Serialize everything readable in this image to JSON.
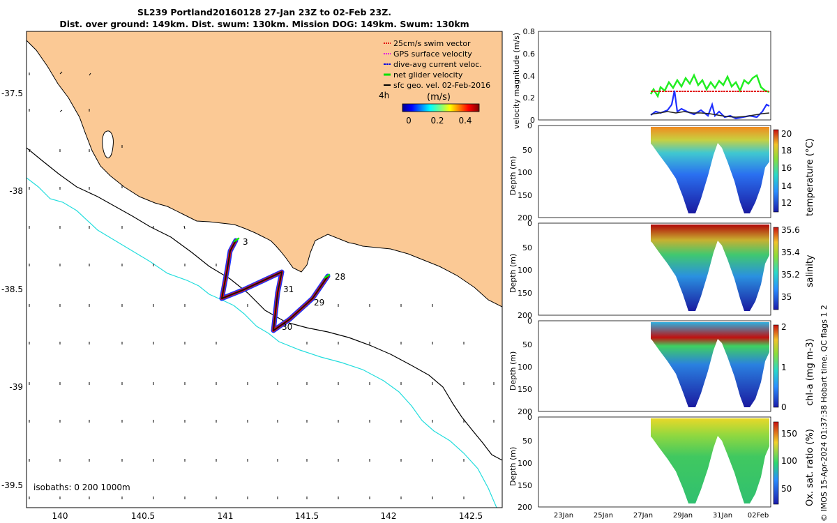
{
  "title": {
    "line1": "SL239 Portland20160128 27-Jan 23Z to 02-Feb 23Z.",
    "line2": "Dist. over ground: 149km. Dist. swum: 130km. Mission DOG: 149km. Swum: 130km"
  },
  "map": {
    "lon_ticks": [
      "140",
      "140.5",
      "141",
      "141.5",
      "142",
      "142.5"
    ],
    "lat_ticks": [
      "-37.5",
      "-38",
      "-38.5",
      "-39",
      "-39.5"
    ],
    "isobaths_label": "isobaths: 0   200  1000m",
    "legend": [
      {
        "label": "25cm/s swim vector",
        "color": "#e00000"
      },
      {
        "label": "GPS surface velocity",
        "color": "#e000e0"
      },
      {
        "label": "dive-avg current veloc.",
        "color": "#0000e0"
      },
      {
        "label": "net glider velocity",
        "color": "#00e000"
      },
      {
        "label": "sfc geo. vel. 02-Feb-2016",
        "color": "#000000"
      }
    ],
    "colorbar": {
      "prefix": "4h",
      "units": "(m/s)",
      "ticks": [
        "0",
        "0.2",
        "0.4"
      ]
    },
    "day_labels": [
      "3",
      "31",
      "28",
      "29",
      "30"
    ],
    "colors": {
      "land": "#fbc995",
      "track": "#111111",
      "isobath_200": "#22dddd",
      "coast": "#000000"
    }
  },
  "panels": {
    "velocity": {
      "ylabel": "velocity magnitude (m/s)",
      "yticks": [
        "0",
        "0.2",
        "0.4",
        "0.6",
        "0.8"
      ]
    },
    "temperature": {
      "ylabel": "Depth (m)",
      "yticks": [
        "0",
        "50",
        "100",
        "150",
        "200"
      ],
      "cbar_label": "temperature (°C)",
      "cbar_ticks": [
        "20",
        "18",
        "16",
        "14",
        "12"
      ]
    },
    "salinity": {
      "ylabel": "Depth (m)",
      "yticks": [
        "0",
        "50",
        "100",
        "150",
        "200"
      ],
      "cbar_label": "salinity",
      "cbar_ticks": [
        "35.6",
        "35.4",
        "35.2",
        "35"
      ]
    },
    "chla": {
      "ylabel": "Depth (m)",
      "yticks": [
        "0",
        "50",
        "100",
        "150",
        "200"
      ],
      "cbar_label": "chl-a (mg m-3)",
      "cbar_ticks": [
        "2",
        "1",
        "0"
      ]
    },
    "oxygen": {
      "ylabel": "Depth (m)",
      "yticks": [
        "0",
        "50",
        "100",
        "150",
        "200"
      ],
      "cbar_label": "Ox. sat. ratio (%)",
      "cbar_ticks": [
        "150",
        "100",
        "50"
      ]
    },
    "date_ticks": [
      "23Jan",
      "25Jan",
      "27Jan",
      "29Jan",
      "31Jan",
      "02Feb"
    ]
  },
  "footer": {
    "credit": "© IMOS 15-Apr-2024 01:37:38 Hobart time. QC flags 1  2"
  }
}
